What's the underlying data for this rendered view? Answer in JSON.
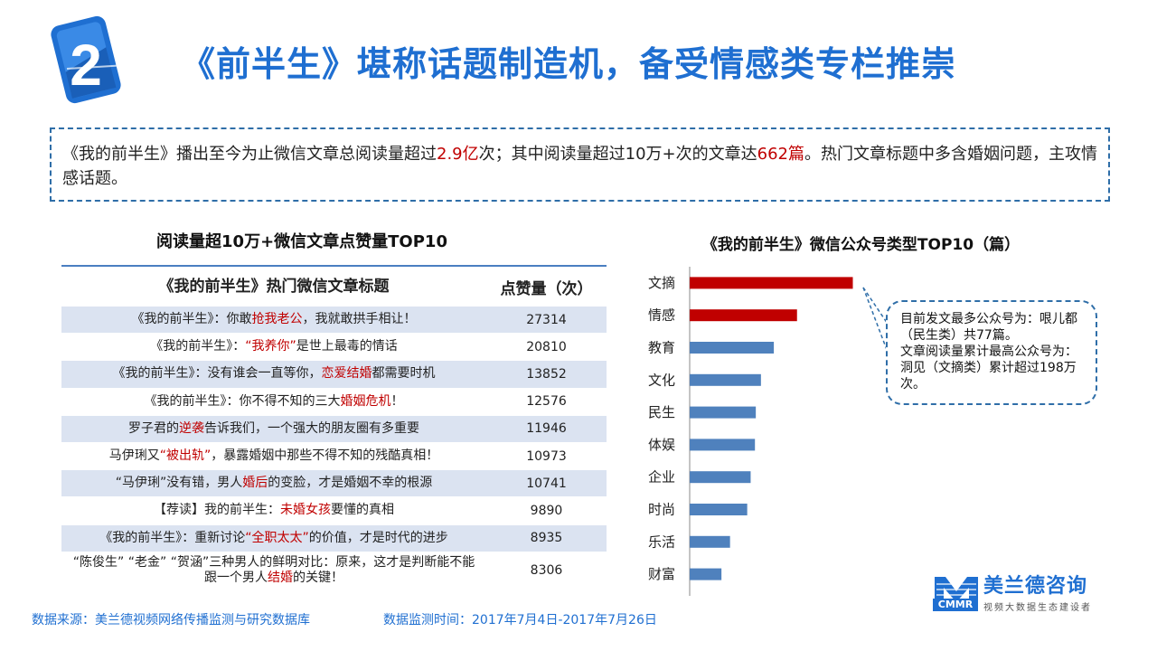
{
  "badge_number": "2",
  "title": "《前半生》堪称话题制造机，备受情感类专栏推崇",
  "summary": {
    "p1": "《我的前半生》播出至今为止微信文章总阅读量超过",
    "v1": "2.9亿",
    "p2": "次；其中阅读量超过10万+次的文章达",
    "v2": "662篇",
    "p3": "。热门文章标题中多含婚姻问题，主攻情感话题。"
  },
  "table": {
    "title": "阅读量超10万+微信文章点赞量TOP10",
    "col1": "《我的前半生》热门微信文章标题",
    "col2": "点赞量（次）",
    "rows": [
      {
        "a": "《我的前半生》：你敢",
        "h": "抢我老公",
        "b": "，我就敢拱手相让！",
        "likes": "27314"
      },
      {
        "a": "《我的前半生》：",
        "h": "“我养你”",
        "b": "是世上最毒的情话",
        "likes": "20810"
      },
      {
        "a": "《我的前半生》：没有谁会一直等你，",
        "h": "恋爱结婚",
        "b": "都需要时机",
        "likes": "13852"
      },
      {
        "a": "《我的前半生》：你不得不知的三大",
        "h": "婚姻危机",
        "b": "！",
        "likes": "12576"
      },
      {
        "a": "罗子君的",
        "h": "逆袭",
        "b": "告诉我们，一个强大的朋友圈有多重要",
        "likes": "11946"
      },
      {
        "a": "马伊琍又",
        "h": "“被出轨”",
        "b": "，暴露婚姻中那些不得不知的残酷真相！",
        "likes": "10973"
      },
      {
        "a": "“马伊琍”没有错，男人",
        "h": "婚后",
        "b": "的变脸，才是婚姻不幸的根源",
        "likes": "10741"
      },
      {
        "a": "【荐读】我的前半生：",
        "h": "未婚女孩",
        "b": "要懂的真相",
        "likes": "9890"
      },
      {
        "a": "《我的前半生》：重新讨论",
        "h": "“全职太太”",
        "b": "的价值，才是时代的进步",
        "likes": "8935"
      },
      {
        "a": "“陈俊生” “老金” “贺涵”三种男人的鲜明对比：原来，这才是判断能不能跟一个男人",
        "h": "结婚",
        "b": "的关键！",
        "likes": "8306"
      }
    ]
  },
  "chart_data": {
    "type": "bar",
    "orientation": "horizontal",
    "title": "《我的前半生》微信公众号类型TOP10（篇）",
    "categories": [
      "文摘",
      "情感",
      "教育",
      "文化",
      "民生",
      "体娱",
      "企业",
      "时尚",
      "乐活",
      "财富"
    ],
    "values": [
      190,
      125,
      98,
      83,
      77,
      76,
      71,
      67,
      47,
      37
    ],
    "highlight_count": 2,
    "colors": {
      "highlight": "#c00000",
      "normal": "#4f81bd"
    },
    "xlim": [
      0,
      200
    ],
    "grid": false,
    "legend": "none"
  },
  "callout": {
    "line1": "目前发文最多公众号为：哏儿都（民生类）共77篇。",
    "line2": "文章阅读量累计最高公众号为：洞见（文摘类）累计超过198万次。"
  },
  "footer": {
    "source": "数据来源：美兰德视频网络传播监测与研究数据库",
    "period": "数据监测时间：2017年7月4日-2017年7月26日"
  },
  "logo": {
    "mark": "M",
    "name": "美兰德咨询",
    "abbr": "CMMR",
    "tagline": "视频大数据生态建设者"
  }
}
